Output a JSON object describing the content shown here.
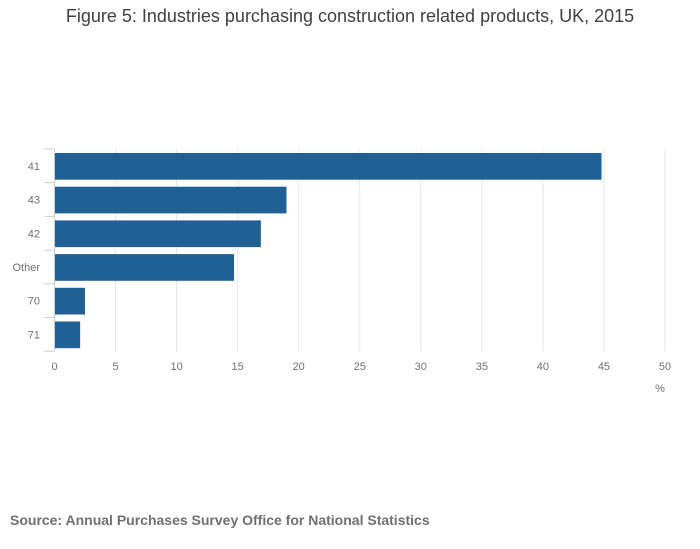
{
  "colors": {
    "bar": "#206095",
    "grid": "#e6e6e6",
    "text": "#707071",
    "title": "#414042"
  },
  "chart_data": {
    "type": "bar",
    "orientation": "horizontal",
    "title": "Figure 5: Industries purchasing construction related products, UK, 2015",
    "categories": [
      "41",
      "43",
      "42",
      "Other",
      "70",
      "71"
    ],
    "values": [
      44.8,
      19.0,
      16.9,
      14.7,
      2.5,
      2.1
    ],
    "xlabel": "%",
    "ylabel": "",
    "xlim": [
      0,
      50
    ],
    "xticks": [
      0,
      5,
      10,
      15,
      20,
      25,
      30,
      35,
      40,
      45,
      50
    ],
    "grid": true,
    "source": "Source: Annual Purchases Survey Office for National Statistics"
  }
}
